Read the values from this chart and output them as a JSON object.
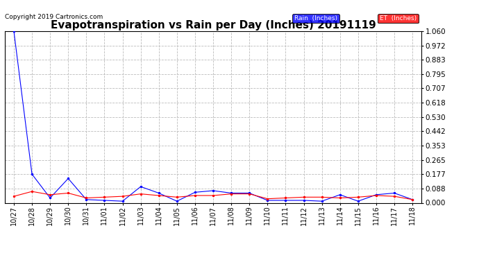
{
  "title": "Evapotranspiration vs Rain per Day (Inches) 20191119",
  "copyright": "Copyright 2019 Cartronics.com",
  "x_labels": [
    "10/27",
    "10/28",
    "10/29",
    "10/30",
    "10/31",
    "11/01",
    "11/02",
    "11/03",
    "11/04",
    "11/05",
    "11/06",
    "11/07",
    "11/08",
    "11/09",
    "11/10",
    "11/11",
    "11/12",
    "11/13",
    "11/14",
    "11/15",
    "11/16",
    "11/17",
    "11/18"
  ],
  "rain_values": [
    1.06,
    0.177,
    0.03,
    0.15,
    0.02,
    0.015,
    0.01,
    0.1,
    0.06,
    0.01,
    0.065,
    0.075,
    0.06,
    0.06,
    0.015,
    0.015,
    0.015,
    0.01,
    0.05,
    0.01,
    0.05,
    0.06,
    0.02
  ],
  "et_values": [
    0.04,
    0.07,
    0.05,
    0.06,
    0.03,
    0.035,
    0.04,
    0.055,
    0.045,
    0.035,
    0.045,
    0.045,
    0.055,
    0.055,
    0.025,
    0.03,
    0.035,
    0.035,
    0.03,
    0.035,
    0.045,
    0.04,
    0.02
  ],
  "rain_color": "#0000FF",
  "et_color": "#FF0000",
  "ylim": [
    0.0,
    1.06
  ],
  "yticks": [
    0.0,
    0.088,
    0.177,
    0.265,
    0.353,
    0.442,
    0.53,
    0.618,
    0.707,
    0.795,
    0.883,
    0.972,
    1.06
  ],
  "background_color": "#ffffff",
  "grid_color": "#bbbbbb",
  "title_fontsize": 11,
  "copyright_fontsize": 6.5,
  "legend_rain_label": "Rain  (Inches)",
  "legend_et_label": "ET  (Inches)",
  "tick_fontsize": 7,
  "ytick_fontsize": 7.5
}
